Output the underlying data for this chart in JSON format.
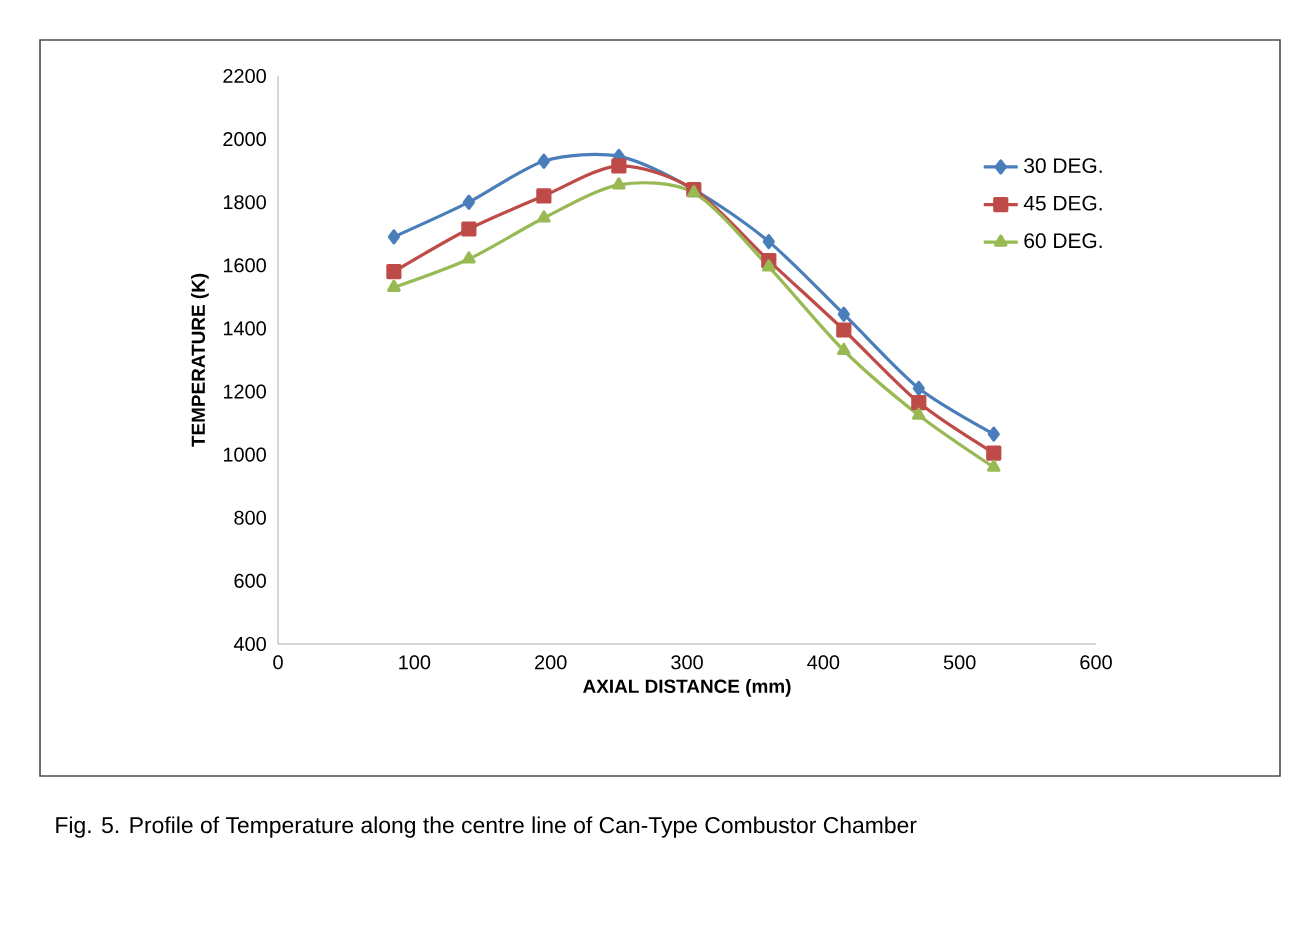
{
  "chart_data": {
    "type": "line",
    "x": [
      85,
      140,
      195,
      250,
      305,
      360,
      415,
      470,
      525
    ],
    "series": [
      {
        "name": "30 DEG.",
        "color": "#4a7ebb",
        "marker": "diamond",
        "values": [
          1690,
          1800,
          1930,
          1945,
          1840,
          1675,
          1445,
          1210,
          1065
        ]
      },
      {
        "name": "45 DEG.",
        "color": "#be4b48",
        "marker": "square",
        "values": [
          1580,
          1715,
          1820,
          1915,
          1840,
          1615,
          1395,
          1165,
          1005
        ]
      },
      {
        "name": "60 DEG.",
        "color": "#98b954",
        "marker": "triangle",
        "values": [
          1530,
          1620,
          1750,
          1855,
          1830,
          1595,
          1330,
          1125,
          960
        ]
      }
    ],
    "xlabel": "AXIAL DISTANCE (mm)",
    "ylabel": "TEMPERATURE (K)",
    "xlim": [
      0,
      600
    ],
    "xticks": [
      0,
      100,
      200,
      300,
      400,
      500,
      600
    ],
    "ylim": [
      400,
      2200
    ],
    "yticks": [
      400,
      600,
      800,
      1000,
      1200,
      1400,
      1600,
      1800,
      2000,
      2200
    ],
    "legend": "right",
    "grid": false,
    "line_style": "solid",
    "annotations": [
      "Fig. 5. Profile of Temperature along the centre line of Can-Type Combustor Chamber"
    ]
  }
}
